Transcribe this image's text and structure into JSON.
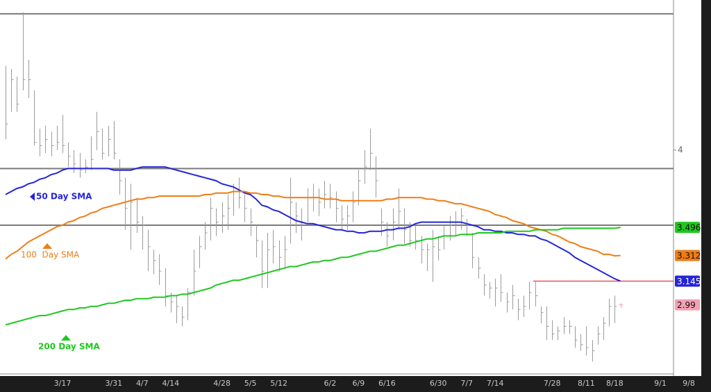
{
  "chart_data": {
    "type": "ohlc",
    "categories": [
      null,
      null,
      null,
      null,
      null,
      null,
      null,
      null,
      null,
      null,
      "3/17",
      null,
      null,
      null,
      null,
      null,
      null,
      null,
      null,
      "3/31",
      null,
      null,
      null,
      null,
      "4/7",
      null,
      null,
      null,
      null,
      "4/14",
      null,
      null,
      null,
      null,
      null,
      null,
      null,
      null,
      "4/28",
      null,
      null,
      null,
      null,
      "5/5",
      null,
      null,
      null,
      null,
      "5/12",
      null,
      null,
      null,
      null,
      null,
      null,
      null,
      null,
      "6/2",
      null,
      null,
      null,
      null,
      "6/9",
      null,
      null,
      null,
      null,
      "6/16",
      null,
      null,
      null,
      null,
      null,
      null,
      null,
      null,
      "6/30",
      null,
      null,
      null,
      null,
      "7/7",
      null,
      null,
      null,
      null,
      "7/14",
      null,
      null,
      null,
      null,
      null,
      null,
      null,
      null,
      null,
      "7/28",
      null,
      null,
      null,
      null,
      null,
      "8/11",
      null,
      null,
      null,
      null,
      "8/18",
      null,
      null,
      null,
      null,
      null,
      null,
      null,
      "9/1",
      null,
      null,
      null,
      null,
      "9/8"
    ],
    "high": [
      4.55,
      4.53,
      4.48,
      4.9,
      4.59,
      4.39,
      4.14,
      4.16,
      4.12,
      4.16,
      4.23,
      4.05,
      4.0,
      3.98,
      3.94,
      4.09,
      4.25,
      4.14,
      4.16,
      4.19,
      3.94,
      3.82,
      3.78,
      3.69,
      3.57,
      3.48,
      3.35,
      3.32,
      3.23,
      3.07,
      3.05,
      2.98,
      3.1,
      3.35,
      3.44,
      3.53,
      3.69,
      3.62,
      3.66,
      3.71,
      3.78,
      3.82,
      3.71,
      3.62,
      3.51,
      3.41,
      3.46,
      3.48,
      3.41,
      3.44,
      3.82,
      3.66,
      3.62,
      3.75,
      3.78,
      3.75,
      3.8,
      3.78,
      3.73,
      3.64,
      3.64,
      3.73,
      3.87,
      4.0,
      4.14,
      3.96,
      3.62,
      3.53,
      3.62,
      3.75,
      3.62,
      3.53,
      3.51,
      3.44,
      3.39,
      3.48,
      3.44,
      3.51,
      3.57,
      3.6,
      3.62,
      3.55,
      3.46,
      3.3,
      3.19,
      3.14,
      3.16,
      3.19,
      3.07,
      3.12,
      3.03,
      3.05,
      3.14,
      3.14,
      2.98,
      2.98,
      2.89,
      2.85,
      2.91,
      2.89,
      2.85,
      2.8,
      2.85,
      2.76,
      2.85,
      2.91,
      3.03,
      3.05,
      3.0,
      null,
      null,
      null,
      null,
      null,
      null,
      null,
      null,
      null,
      null,
      null,
      null
    ],
    "low": [
      4.07,
      4.25,
      4.25,
      4.39,
      4.34,
      4.03,
      3.96,
      3.98,
      3.96,
      4.0,
      3.98,
      3.89,
      3.85,
      3.82,
      3.85,
      3.87,
      4.0,
      3.94,
      3.96,
      3.94,
      3.71,
      3.48,
      3.35,
      3.46,
      3.35,
      3.21,
      3.19,
      3.12,
      2.98,
      2.94,
      2.87,
      2.85,
      2.89,
      3.05,
      3.23,
      3.35,
      3.41,
      3.44,
      3.46,
      3.48,
      3.57,
      3.62,
      3.53,
      3.44,
      3.3,
      3.1,
      3.1,
      3.26,
      3.21,
      3.23,
      3.39,
      3.46,
      3.41,
      3.53,
      3.6,
      3.57,
      3.62,
      3.62,
      3.53,
      3.48,
      3.48,
      3.53,
      3.64,
      3.78,
      3.87,
      3.69,
      3.44,
      3.37,
      3.41,
      3.48,
      3.39,
      3.37,
      3.35,
      3.26,
      3.21,
      3.14,
      3.28,
      3.35,
      3.41,
      3.44,
      3.48,
      3.44,
      3.23,
      3.16,
      3.05,
      3.03,
      2.98,
      3.01,
      2.94,
      2.96,
      2.89,
      2.91,
      2.96,
      2.98,
      2.87,
      2.76,
      2.76,
      2.76,
      2.8,
      2.8,
      2.71,
      2.69,
      2.66,
      2.62,
      2.73,
      2.76,
      2.85,
      2.87,
      2.97,
      null,
      null,
      null,
      null,
      null,
      null,
      null,
      null,
      null,
      null,
      null,
      null
    ],
    "close": [
      4.17,
      4.46,
      4.3,
      4.46,
      4.46,
      4.05,
      4.03,
      4.07,
      4.03,
      4.05,
      4.03,
      3.96,
      3.91,
      3.87,
      3.89,
      3.94,
      4.12,
      3.98,
      4.07,
      3.98,
      3.8,
      3.62,
      3.66,
      3.53,
      3.51,
      3.37,
      3.28,
      3.21,
      3.05,
      3.01,
      2.98,
      2.91,
      3.07,
      3.21,
      3.37,
      3.46,
      3.62,
      3.53,
      3.57,
      3.62,
      3.73,
      3.69,
      3.62,
      3.53,
      3.41,
      3.21,
      3.35,
      3.37,
      3.3,
      3.35,
      3.66,
      3.57,
      3.53,
      3.69,
      3.69,
      3.66,
      3.71,
      3.69,
      3.62,
      3.55,
      3.57,
      3.66,
      3.8,
      3.89,
      3.98,
      3.8,
      3.53,
      3.44,
      3.53,
      3.6,
      3.48,
      3.41,
      3.41,
      3.35,
      3.35,
      3.37,
      3.35,
      3.44,
      3.51,
      3.53,
      3.57,
      3.51,
      3.3,
      3.23,
      3.12,
      3.1,
      3.1,
      3.07,
      3.01,
      3.05,
      2.96,
      2.98,
      3.07,
      3.05,
      2.94,
      2.85,
      2.8,
      2.82,
      2.85,
      2.85,
      2.76,
      2.73,
      2.71,
      2.69,
      2.8,
      2.87,
      2.98,
      2.98,
      2.99,
      null,
      null,
      null,
      null,
      null,
      null,
      null,
      null,
      null,
      null,
      null,
      null
    ],
    "bar_color": "#9a9a9a",
    "last_color": "#f4a0b4",
    "series": [
      {
        "name": "50 Day SMA",
        "color": "#2424d8",
        "values": [
          3.71,
          3.73,
          3.75,
          3.76,
          3.78,
          3.79,
          3.81,
          3.82,
          3.84,
          3.85,
          3.87,
          3.88,
          3.88,
          3.88,
          3.88,
          3.88,
          3.88,
          3.88,
          3.88,
          3.87,
          3.87,
          3.87,
          3.87,
          3.88,
          3.89,
          3.89,
          3.89,
          3.89,
          3.89,
          3.88,
          3.87,
          3.86,
          3.85,
          3.84,
          3.83,
          3.82,
          3.81,
          3.8,
          3.78,
          3.77,
          3.76,
          3.74,
          3.72,
          3.71,
          3.68,
          3.64,
          3.63,
          3.61,
          3.6,
          3.58,
          3.56,
          3.54,
          3.53,
          3.52,
          3.52,
          3.51,
          3.5,
          3.49,
          3.48,
          3.48,
          3.47,
          3.47,
          3.46,
          3.46,
          3.47,
          3.47,
          3.47,
          3.48,
          3.48,
          3.49,
          3.49,
          3.5,
          3.52,
          3.53,
          3.53,
          3.53,
          3.53,
          3.53,
          3.53,
          3.53,
          3.53,
          3.52,
          3.51,
          3.5,
          3.48,
          3.48,
          3.47,
          3.47,
          3.46,
          3.46,
          3.45,
          3.45,
          3.44,
          3.44,
          3.42,
          3.41,
          3.39,
          3.37,
          3.35,
          3.33,
          3.3,
          3.28,
          3.26,
          3.24,
          3.22,
          3.2,
          3.18,
          3.16,
          3.145,
          null,
          null,
          null,
          null,
          null,
          null,
          null,
          null,
          null,
          null,
          null,
          null
        ]
      },
      {
        "name": "100  Day SMA",
        "color": "#f07c12",
        "values": [
          3.29,
          3.32,
          3.34,
          3.37,
          3.4,
          3.42,
          3.44,
          3.46,
          3.48,
          3.5,
          3.51,
          3.53,
          3.54,
          3.56,
          3.57,
          3.59,
          3.6,
          3.62,
          3.63,
          3.64,
          3.65,
          3.66,
          3.67,
          3.68,
          3.68,
          3.69,
          3.69,
          3.7,
          3.7,
          3.7,
          3.7,
          3.7,
          3.7,
          3.7,
          3.7,
          3.71,
          3.71,
          3.72,
          3.72,
          3.72,
          3.73,
          3.73,
          3.73,
          3.72,
          3.72,
          3.71,
          3.71,
          3.7,
          3.7,
          3.69,
          3.69,
          3.69,
          3.69,
          3.69,
          3.69,
          3.69,
          3.68,
          3.68,
          3.68,
          3.67,
          3.67,
          3.67,
          3.67,
          3.67,
          3.67,
          3.67,
          3.67,
          3.68,
          3.68,
          3.69,
          3.69,
          3.69,
          3.69,
          3.69,
          3.68,
          3.68,
          3.67,
          3.67,
          3.66,
          3.65,
          3.65,
          3.64,
          3.63,
          3.62,
          3.61,
          3.6,
          3.58,
          3.57,
          3.56,
          3.54,
          3.53,
          3.52,
          3.5,
          3.49,
          3.48,
          3.47,
          3.45,
          3.44,
          3.42,
          3.4,
          3.39,
          3.37,
          3.36,
          3.35,
          3.34,
          3.32,
          3.32,
          3.31,
          3.312,
          null,
          null,
          null,
          null,
          null,
          null,
          null,
          null,
          null,
          null,
          null,
          null
        ]
      },
      {
        "name": "200 Day SMA",
        "color": "#1ec81e",
        "values": [
          2.86,
          2.87,
          2.88,
          2.89,
          2.9,
          2.91,
          2.92,
          2.92,
          2.93,
          2.94,
          2.95,
          2.96,
          2.96,
          2.97,
          2.97,
          2.98,
          2.98,
          2.99,
          3.0,
          3.0,
          3.01,
          3.02,
          3.02,
          3.03,
          3.03,
          3.03,
          3.04,
          3.04,
          3.04,
          3.05,
          3.05,
          3.06,
          3.06,
          3.07,
          3.08,
          3.09,
          3.1,
          3.12,
          3.13,
          3.14,
          3.15,
          3.15,
          3.16,
          3.17,
          3.18,
          3.19,
          3.2,
          3.21,
          3.22,
          3.23,
          3.24,
          3.24,
          3.25,
          3.26,
          3.27,
          3.27,
          3.28,
          3.28,
          3.29,
          3.3,
          3.3,
          3.31,
          3.32,
          3.33,
          3.34,
          3.34,
          3.35,
          3.36,
          3.37,
          3.38,
          3.38,
          3.39,
          3.4,
          3.41,
          3.42,
          3.42,
          3.43,
          3.44,
          3.44,
          3.44,
          3.45,
          3.45,
          3.45,
          3.46,
          3.46,
          3.46,
          3.46,
          3.46,
          3.47,
          3.47,
          3.47,
          3.47,
          3.47,
          3.48,
          3.48,
          3.48,
          3.48,
          3.48,
          3.49,
          3.49,
          3.49,
          3.49,
          3.49,
          3.49,
          3.49,
          3.49,
          3.49,
          3.49,
          3.496,
          null,
          null,
          null,
          null,
          null,
          null,
          null,
          null,
          null,
          null,
          null,
          null
        ]
      }
    ],
    "levels": [
      {
        "value": 4.89,
        "color": "#7a7a7a"
      },
      {
        "value": 3.88,
        "color": "#7a7a7a"
      },
      {
        "value": 3.51,
        "color": "#7a7a7a"
      },
      {
        "value": 3.145,
        "color": "#e02828"
      }
    ],
    "ylim": [
      2.53,
      4.98
    ],
    "yticks": [
      4
    ]
  }
}
